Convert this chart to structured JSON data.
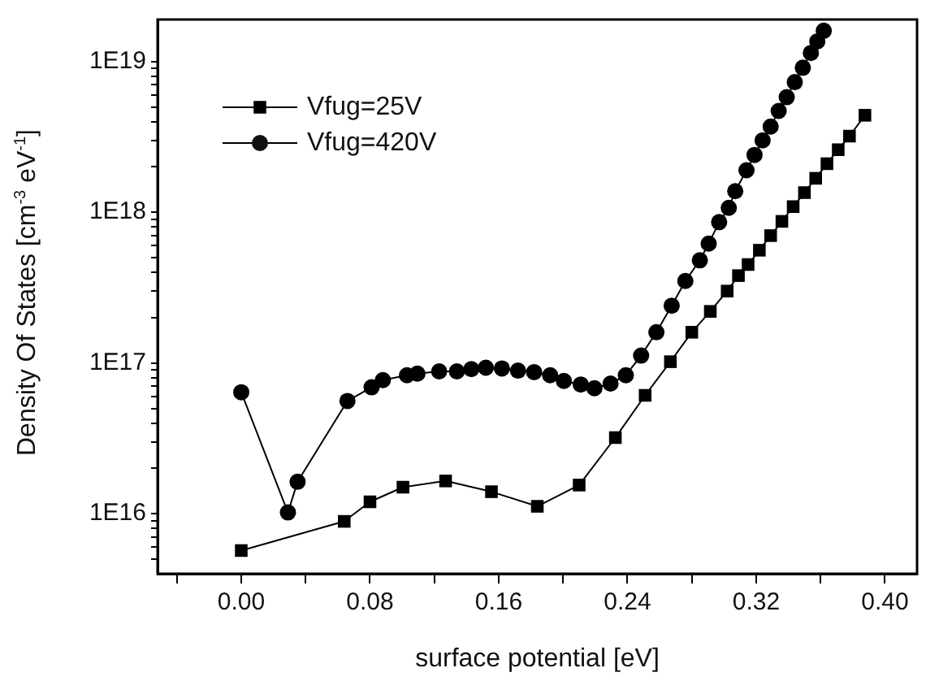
{
  "chart_data": {
    "type": "line",
    "xlabel": "surface potential [eV]",
    "ylabel": "Density Of States [cm$^{-3}$ eV$^{-1}$]",
    "log": "y",
    "legend": "top left",
    "grid": false,
    "xlim": [
      -0.052,
      0.42
    ],
    "xticks": [
      {
        "value": -0.04,
        "label": null
      },
      {
        "value": 0,
        "label": "0.00"
      },
      {
        "value": 0.04,
        "label": null
      },
      {
        "value": 0.08,
        "label": "0.08"
      },
      {
        "value": 0.12,
        "label": null
      },
      {
        "value": 0.16,
        "label": "0.16"
      },
      {
        "value": 0.2,
        "label": null
      },
      {
        "value": 0.24,
        "label": "0.24"
      },
      {
        "value": 0.28,
        "label": null
      },
      {
        "value": 0.32,
        "label": "0.32"
      },
      {
        "value": 0.36,
        "label": null
      },
      {
        "value": 0.4,
        "label": "0.40"
      }
    ],
    "ylim": [
      4000000000000000.0,
      1.9e+19
    ],
    "yticks": [
      {
        "value": 5000000000000000.0,
        "label": null
      },
      {
        "value": 6000000000000000.0,
        "label": null
      },
      {
        "value": 7000000000000000.0,
        "label": null
      },
      {
        "value": 8000000000000000.0,
        "label": null
      },
      {
        "value": 9000000000000000.0,
        "label": null
      },
      {
        "value": 1e+16,
        "label": "1E16"
      },
      {
        "value": 2e+16,
        "label": null
      },
      {
        "value": 3e+16,
        "label": null
      },
      {
        "value": 4e+16,
        "label": null
      },
      {
        "value": 5e+16,
        "label": null
      },
      {
        "value": 6e+16,
        "label": null
      },
      {
        "value": 7e+16,
        "label": null
      },
      {
        "value": 8e+16,
        "label": null
      },
      {
        "value": 9e+16,
        "label": null
      },
      {
        "value": 1e+17,
        "label": "1E17"
      },
      {
        "value": 2e+17,
        "label": null
      },
      {
        "value": 3e+17,
        "label": null
      },
      {
        "value": 4e+17,
        "label": null
      },
      {
        "value": 5e+17,
        "label": null
      },
      {
        "value": 6e+17,
        "label": null
      },
      {
        "value": 7e+17,
        "label": null
      },
      {
        "value": 8e+17,
        "label": null
      },
      {
        "value": 9e+17,
        "label": null
      },
      {
        "value": 1e+18,
        "label": "1E18"
      },
      {
        "value": 2e+18,
        "label": null
      },
      {
        "value": 3e+18,
        "label": null
      },
      {
        "value": 4e+18,
        "label": null
      },
      {
        "value": 5e+18,
        "label": null
      },
      {
        "value": 6e+18,
        "label": null
      },
      {
        "value": 7e+18,
        "label": null
      },
      {
        "value": 8e+18,
        "label": null
      },
      {
        "value": 9e+18,
        "label": null
      },
      {
        "value": 1e+19,
        "label": "1E19"
      }
    ],
    "series": [
      {
        "name": "Vfug=25V",
        "color": "#000000",
        "marker": "square",
        "x": [
          0.0,
          0.064,
          0.08,
          0.1005,
          0.127,
          0.1555,
          0.184,
          0.21,
          0.2325,
          0.251,
          0.2667,
          0.28,
          0.2915,
          0.302,
          0.309,
          0.315,
          0.322,
          0.329,
          0.336,
          0.343,
          0.35,
          0.357,
          0.364,
          0.371,
          0.378,
          0.3876
        ],
        "values": [
          5700000000000000.0,
          8900000000000000.0,
          1.2e+16,
          1.5e+16,
          1.65e+16,
          1.4e+16,
          1.12e+16,
          1.55e+16,
          3.2e+16,
          6.1e+16,
          1.02e+17,
          1.6e+17,
          2.2e+17,
          3e+17,
          3.8e+17,
          4.5e+17,
          5.6e+17,
          7e+17,
          8.7e+17,
          1.09e+18,
          1.35e+18,
          1.68e+18,
          2.1e+18,
          2.6e+18,
          3.2e+18,
          4.4e+18
        ]
      },
      {
        "name": "Vfug=420V",
        "color": "#000000",
        "marker": "circle",
        "x": [
          0.0,
          0.029,
          0.035,
          0.066,
          0.081,
          0.088,
          0.103,
          0.1095,
          0.123,
          0.134,
          0.143,
          0.152,
          0.162,
          0.172,
          0.182,
          0.192,
          0.2005,
          0.211,
          0.2195,
          0.2295,
          0.239,
          0.2485,
          0.258,
          0.2675,
          0.276,
          0.285,
          0.2905,
          0.297,
          0.303,
          0.307,
          0.314,
          0.319,
          0.324,
          0.329,
          0.334,
          0.339,
          0.344,
          0.349,
          0.354,
          0.358,
          0.362
        ],
        "values": [
          6.4e+16,
          1.02e+16,
          1.63e+16,
          5.6e+16,
          6.9e+16,
          7.7e+16,
          8.3e+16,
          8.5e+16,
          8.8e+16,
          8.8e+16,
          9.1e+16,
          9.3e+16,
          9.2e+16,
          8.9e+16,
          8.7e+16,
          8.3e+16,
          7.6e+16,
          7.2e+16,
          6.8e+16,
          7.3e+16,
          8.3e+16,
          1.12e+17,
          1.6e+17,
          2.4e+17,
          3.5e+17,
          4.8e+17,
          6.2e+17,
          8.6e+17,
          1.07e+18,
          1.38e+18,
          1.9e+18,
          2.4e+18,
          3e+18,
          3.7e+18,
          4.7e+18,
          5.8e+18,
          7.3e+18,
          9.1e+18,
          1.14e+19,
          1.36e+19,
          1.6e+19
        ]
      }
    ]
  }
}
